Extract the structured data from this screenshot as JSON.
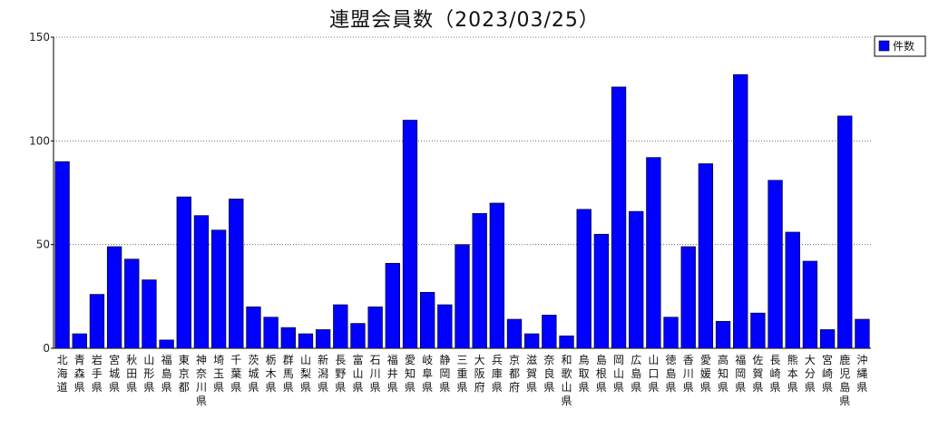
{
  "chart_data": {
    "type": "bar",
    "title": "連盟会員数（2023/03/25）",
    "legend": {
      "label": "件数",
      "placement": "top-right"
    },
    "ylim": [
      0,
      150
    ],
    "yticks": [
      0,
      50,
      100,
      150
    ],
    "grid": true,
    "bar_color": "#0000ff",
    "categories": [
      "北海道",
      "青森県",
      "岩手県",
      "宮城県",
      "秋田県",
      "山形県",
      "福島県",
      "東京都",
      "神奈川県",
      "埼玉県",
      "千葉県",
      "茨城県",
      "栃木県",
      "群馬県",
      "山梨県",
      "新潟県",
      "長野県",
      "富山県",
      "石川県",
      "福井県",
      "愛知県",
      "岐阜県",
      "静岡県",
      "三重県",
      "大阪府",
      "兵庫県",
      "京都府",
      "滋賀県",
      "奈良県",
      "和歌山県",
      "鳥取県",
      "島根県",
      "岡山県",
      "広島県",
      "山口県",
      "徳島県",
      "香川県",
      "愛媛県",
      "高知県",
      "福岡県",
      "佐賀県",
      "長崎県",
      "熊本県",
      "大分県",
      "宮崎県",
      "鹿児島県",
      "沖縄県"
    ],
    "values": [
      90,
      7,
      26,
      49,
      43,
      33,
      4,
      73,
      64,
      57,
      72,
      20,
      15,
      10,
      7,
      9,
      21,
      12,
      20,
      41,
      110,
      27,
      21,
      50,
      65,
      70,
      14,
      7,
      16,
      6,
      67,
      55,
      126,
      66,
      92,
      15,
      49,
      89,
      13,
      132,
      17,
      81,
      56,
      42,
      9,
      112,
      14
    ]
  }
}
